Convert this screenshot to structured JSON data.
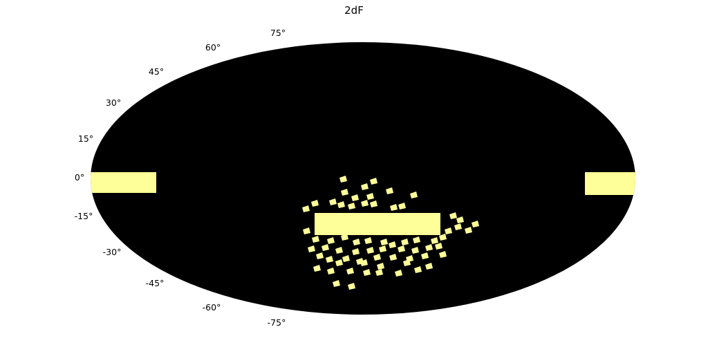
{
  "title": "2dF",
  "map": {
    "projection": "mollweide",
    "background_color": "#000000",
    "coverage_color": "#ffff99",
    "lat_labels": [
      "75°",
      "60°",
      "45°",
      "30°",
      "15°",
      "0°",
      "-15°",
      "-30°",
      "-45°",
      "-60°",
      "-75°"
    ]
  }
}
